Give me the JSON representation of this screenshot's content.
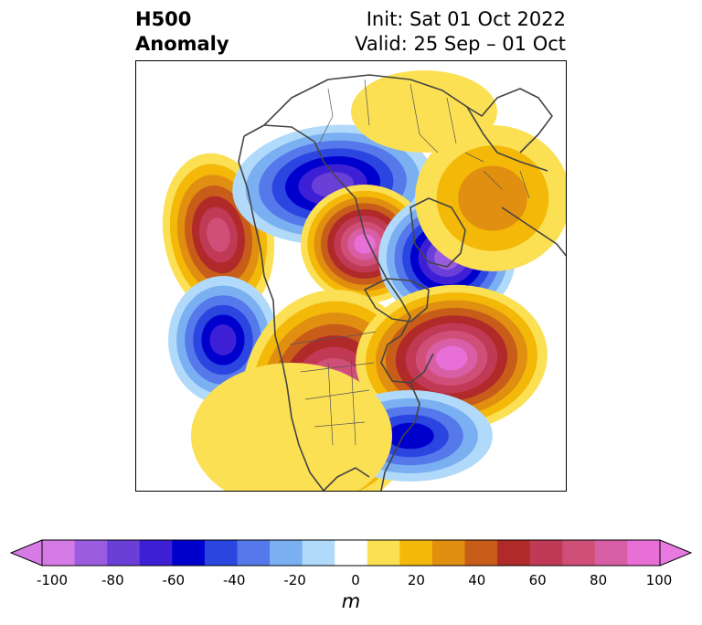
{
  "title": {
    "left_line1": "H500",
    "left_line2": "Anomaly",
    "right_line1": "Init: Sat 01 Oct 2022",
    "right_line2": "Valid: 25 Sep – 01 Oct"
  },
  "colorbar": {
    "units": "m",
    "ticks": [
      "-100",
      "-80",
      "-60",
      "-40",
      "-20",
      "0",
      "20",
      "40",
      "60",
      "80",
      "100"
    ],
    "levels": [
      -100,
      -90,
      -80,
      -70,
      -60,
      -50,
      -40,
      -30,
      -20,
      -10,
      10,
      20,
      30,
      40,
      50,
      60,
      70,
      80,
      90,
      100
    ],
    "colors": [
      "#d67be6",
      "#9b5ce0",
      "#6a3fd8",
      "#3d20d6",
      "#0000cd",
      "#2b45e0",
      "#5578ea",
      "#7aaff2",
      "#b1d9fa",
      "#ffffff",
      "#fbe054",
      "#f3b808",
      "#e08f10",
      "#c85d1a",
      "#b12a2a",
      "#c03a55",
      "#cf4f78",
      "#d85fa5",
      "#e86fd6"
    ],
    "under_color": "#d67be6",
    "over_color": "#e87ae2"
  },
  "map": {
    "projection": "polar-stereographic",
    "region": "Northern Hemisphere",
    "palette": {
      "neg": [
        "#b1d9fa",
        "#7aaff2",
        "#5578ea",
        "#2b45e0",
        "#0000cd",
        "#3d20d6",
        "#6a3fd8",
        "#9b5ce0"
      ],
      "pos": [
        "#fbe054",
        "#f3b808",
        "#e08f10",
        "#c85d1a",
        "#b12a2a",
        "#c03a55",
        "#cf4f78",
        "#d85fa5",
        "#e86fd6"
      ],
      "coast": "#444444"
    }
  }
}
